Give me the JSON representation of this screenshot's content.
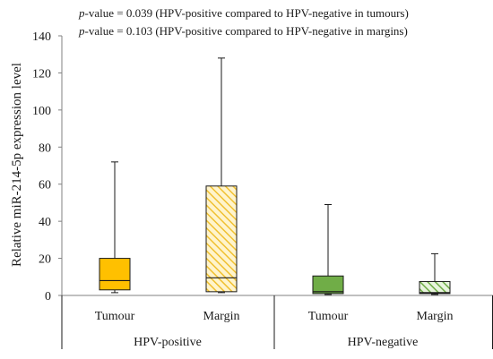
{
  "chart_data": {
    "type": "box",
    "title": "",
    "ylabel": "Relative miR-214-5p expression level",
    "ylim": [
      0,
      140
    ],
    "yticks": [
      0,
      20,
      40,
      60,
      80,
      100,
      120,
      140
    ],
    "annotations": [
      {
        "italic": "p",
        "text": "-value = 0.039 (HPV-positive compared to HPV-negative in tumours)"
      },
      {
        "italic": "p",
        "text": "-value = 0.103 (HPV-positive compared to HPV-negative in margins)"
      }
    ],
    "groups": [
      {
        "label": "HPV-positive"
      },
      {
        "label": "HPV-negative"
      }
    ],
    "boxes": [
      {
        "group": 0,
        "label": "Tumour",
        "min": 1.5,
        "q1": 3,
        "median": 8,
        "q3": 20,
        "max": 72,
        "color": "#FFC000",
        "pattern": "solid"
      },
      {
        "group": 0,
        "label": "Margin",
        "min": 1.5,
        "q1": 2,
        "median": 9.5,
        "q3": 59,
        "max": 128,
        "color": "#FFE38A",
        "stroke": "#D4A017",
        "pattern": "hatch"
      },
      {
        "group": 1,
        "label": "Tumour",
        "min": 0.5,
        "q1": 1,
        "median": 2,
        "q3": 10.5,
        "max": 49,
        "color": "#70AD47",
        "pattern": "solid"
      },
      {
        "group": 1,
        "label": "Margin",
        "min": 0.5,
        "q1": 1,
        "median": 1.5,
        "q3": 7.5,
        "max": 22.5,
        "color": "#A9D18E",
        "stroke": "#548235",
        "pattern": "hatch"
      }
    ]
  }
}
